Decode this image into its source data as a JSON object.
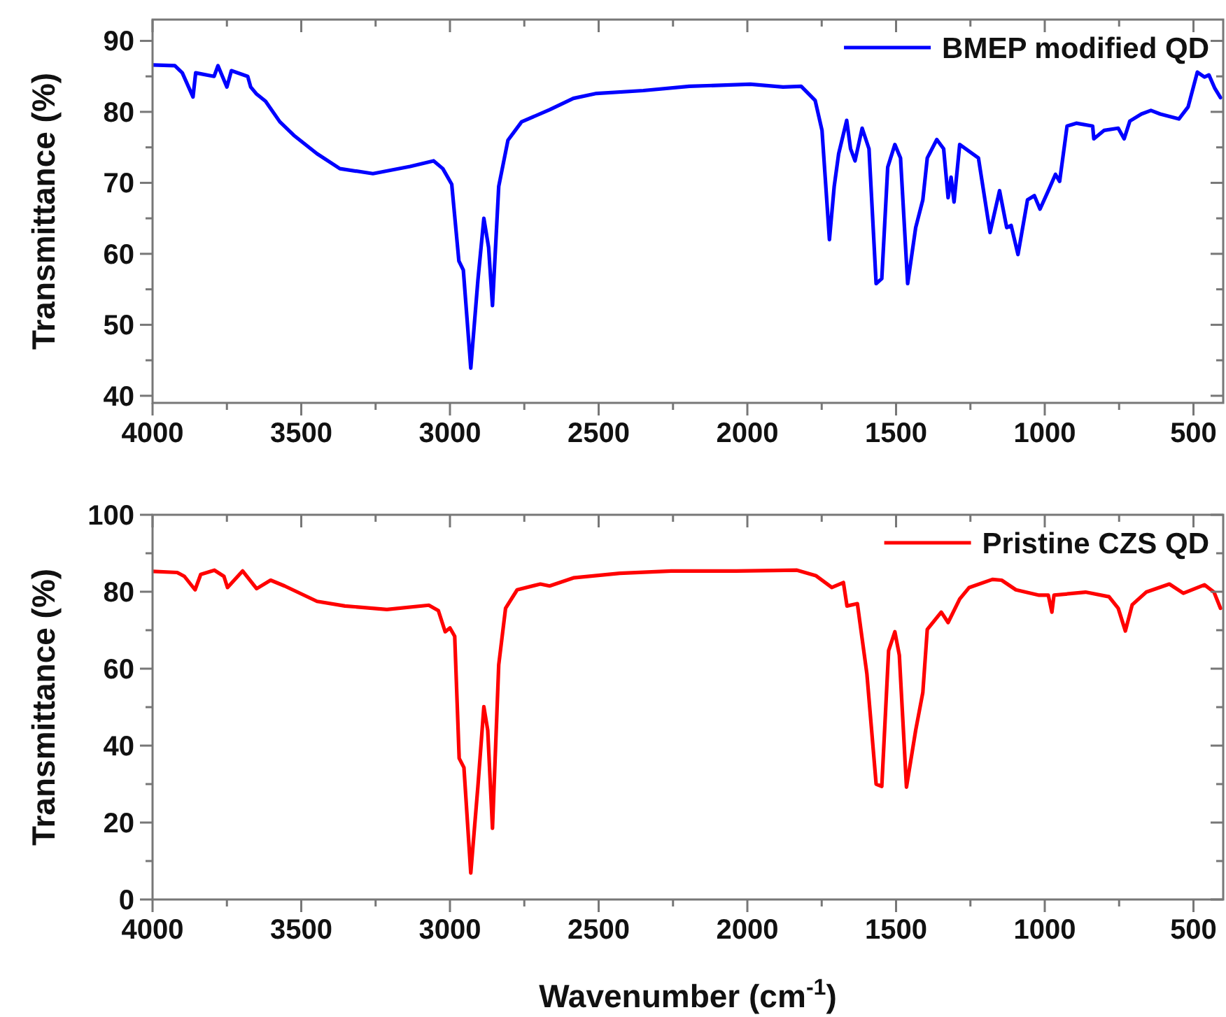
{
  "chart_data": [
    {
      "type": "line",
      "ylabel": "Transmittance (%)",
      "xlim": [
        4000,
        400
      ],
      "ylim": [
        39,
        93
      ],
      "xticks": [
        4000,
        {
          "value": 3750,
          "label": null
        },
        3500,
        {
          "value": 3250,
          "label": null
        },
        3000,
        {
          "value": 2750,
          "label": null
        },
        2500,
        {
          "value": 2250,
          "label": null
        },
        2000,
        {
          "value": 1750,
          "label": null
        },
        1500,
        {
          "value": 1250,
          "label": null
        },
        1000,
        {
          "value": 750,
          "label": null
        },
        500
      ],
      "yticks": [
        40,
        {
          "value": 45,
          "label": null
        },
        50,
        {
          "value": 55,
          "label": null
        },
        60,
        {
          "value": 65,
          "label": null
        },
        70,
        {
          "value": 75,
          "label": null
        },
        80,
        {
          "value": 85,
          "label": null
        },
        90
      ],
      "legend": "top right",
      "line_style": "solid",
      "marker": "none",
      "series": [
        {
          "name": "BMEP modified QD",
          "color": "#0000ff",
          "x": [
            4000,
            3925,
            3900,
            3864,
            3855,
            3793,
            3780,
            3750,
            3735,
            3680,
            3670,
            3650,
            3620,
            3572,
            3525,
            3447,
            3370,
            3259,
            3134,
            3055,
            3024,
            2994,
            2970,
            2955,
            2930,
            2906,
            2886,
            2870,
            2857,
            2836,
            2805,
            2759,
            2665,
            2585,
            2507,
            2350,
            2195,
            1990,
            1880,
            1819,
            1772,
            1749,
            1724,
            1708,
            1693,
            1666,
            1653,
            1638,
            1614,
            1591,
            1567,
            1548,
            1528,
            1504,
            1485,
            1461,
            1434,
            1410,
            1395,
            1363,
            1340,
            1325,
            1315,
            1305,
            1286,
            1223,
            1184,
            1152,
            1128,
            1113,
            1090,
            1058,
            1035,
            1016,
            988,
            964,
            950,
            925,
            894,
            839,
            835,
            800,
            753,
            733,
            714,
            675,
            643,
            612,
            549,
            518,
            487,
            463,
            448,
            428,
            409
          ],
          "values": [
            86.6,
            86.5,
            85.5,
            82.1,
            85.5,
            85,
            86.5,
            83.5,
            85.8,
            85,
            83.5,
            82.5,
            81.5,
            78.6,
            76.7,
            74.1,
            72,
            71.3,
            72.3,
            73.1,
            72,
            69.8,
            59,
            57.7,
            43.9,
            56.3,
            65,
            60.9,
            52.7,
            69.5,
            76,
            78.6,
            80.3,
            81.9,
            82.6,
            83,
            83.6,
            83.9,
            83.5,
            83.6,
            81.6,
            77.4,
            62,
            69.5,
            74.1,
            78.8,
            74.8,
            73.1,
            77.7,
            74.8,
            55.8,
            56.5,
            72.2,
            75.4,
            73.5,
            55.8,
            63.7,
            67.6,
            73.5,
            76.1,
            74.8,
            67.9,
            70.8,
            67.3,
            75.4,
            73.5,
            63,
            68.9,
            63.7,
            64,
            59.9,
            67.6,
            68.2,
            66.3,
            68.9,
            71.2,
            70.2,
            78,
            78.4,
            78,
            76.2,
            77.4,
            77.7,
            76.2,
            78.7,
            79.7,
            80.2,
            79.7,
            79,
            80.7,
            85.6,
            84.9,
            85.2,
            83.3,
            82
          ]
        }
      ]
    },
    {
      "type": "line",
      "xlabel": "Wavenumber (cm$^{-1}$)",
      "ylabel": "Transmittance (%)",
      "xlim": [
        4000,
        400
      ],
      "ylim": [
        0,
        100
      ],
      "xticks": [
        4000,
        {
          "value": 3750,
          "label": null
        },
        3500,
        {
          "value": 3250,
          "label": null
        },
        3000,
        {
          "value": 2750,
          "label": null
        },
        2500,
        {
          "value": 2250,
          "label": null
        },
        2000,
        {
          "value": 1750,
          "label": null
        },
        1500,
        {
          "value": 1250,
          "label": null
        },
        1000,
        {
          "value": 750,
          "label": null
        },
        500
      ],
      "yticks": [
        0,
        {
          "value": 10,
          "label": null
        },
        20,
        {
          "value": 30,
          "label": null
        },
        40,
        {
          "value": 50,
          "label": null
        },
        60,
        {
          "value": 70,
          "label": null
        },
        80,
        {
          "value": 90,
          "label": null
        },
        100
      ],
      "legend": "top right",
      "line_style": "solid",
      "marker": "none",
      "series": [
        {
          "name": "Pristine CZS QD",
          "color": "#ff0000",
          "x": [
            4000,
            3917,
            3893,
            3857,
            3838,
            3792,
            3760,
            3748,
            3697,
            3650,
            3603,
            3556,
            3447,
            3353,
            3212,
            3071,
            3039,
            3016,
            3000,
            2984,
            2969,
            2953,
            2930,
            2906,
            2886,
            2873,
            2857,
            2836,
            2813,
            2774,
            2696,
            2665,
            2585,
            2429,
            2256,
            2037,
            1833,
            1770,
            1716,
            1677,
            1665,
            1630,
            1598,
            1567,
            1548,
            1525,
            1504,
            1489,
            1465,
            1434,
            1410,
            1395,
            1348,
            1325,
            1286,
            1254,
            1176,
            1145,
            1097,
            1019,
            988,
            976,
            969,
            863,
            784,
            753,
            729,
            706,
            659,
            581,
            534,
            463,
            431,
            409
          ],
          "values": [
            85.3,
            85,
            84,
            80.5,
            84.5,
            85.6,
            84,
            81.1,
            85.4,
            80.8,
            83,
            81.5,
            77.5,
            76.3,
            75.4,
            76.5,
            75.1,
            69.6,
            70.6,
            68.4,
            36.7,
            34.3,
            6.9,
            29.4,
            50.1,
            44,
            18.5,
            61,
            75.7,
            80.5,
            82,
            81.5,
            83.6,
            84.8,
            85.4,
            85.4,
            85.6,
            84.2,
            81.1,
            82.4,
            76.3,
            76.9,
            58.6,
            30,
            29.4,
            64.7,
            69.6,
            63.5,
            29.2,
            44,
            53.8,
            70.2,
            74.7,
            72,
            78.1,
            81.1,
            83.2,
            83,
            80.5,
            79.1,
            79.1,
            74.7,
            79.1,
            79.9,
            78.7,
            75.7,
            69.8,
            76.6,
            79.9,
            82,
            79.6,
            81.8,
            79.9,
            75.7
          ]
        }
      ]
    }
  ]
}
